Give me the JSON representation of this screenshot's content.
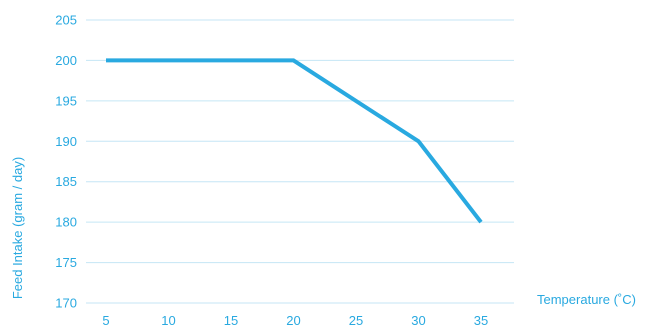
{
  "colors": {
    "accent": "#29a9e0",
    "gridline": "#c5e6f5"
  },
  "chart_data": {
    "type": "line",
    "title": "",
    "xlabel": "Temperature (˚C)",
    "ylabel": "Feed Intake (gram / day)",
    "x": [
      5,
      10,
      15,
      20,
      25,
      30,
      35
    ],
    "series": [
      {
        "values": [
          200,
          200,
          200,
          200,
          195,
          190,
          180
        ]
      }
    ],
    "xlim": [
      5,
      35
    ],
    "ylim": [
      170,
      205
    ],
    "x_ticks": [
      5,
      10,
      15,
      20,
      25,
      30,
      35
    ],
    "y_ticks": [
      170,
      175,
      180,
      185,
      190,
      195,
      200,
      205
    ],
    "grid": "horizontal",
    "legend": "none"
  }
}
